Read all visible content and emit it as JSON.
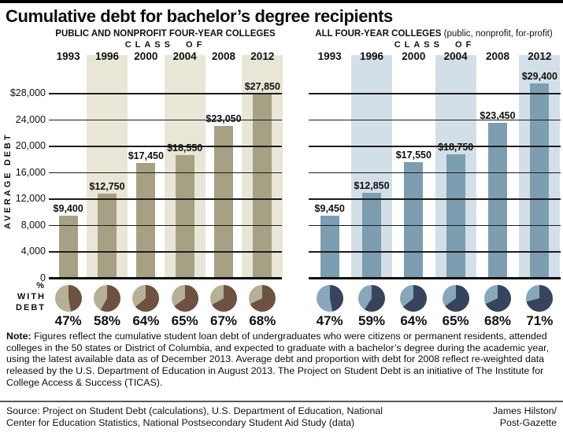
{
  "title": "Cumulative debt for bachelor’s degree recipients",
  "axis": {
    "class_of": "CLASS OF",
    "y_axis_title": "AVERAGE DEBT",
    "y_ticks": [
      "$28,000",
      "24,000",
      "20,000",
      "16,000",
      "12,000",
      "8,000",
      "4,000",
      "0"
    ],
    "y_tick_values": [
      28000,
      24000,
      20000,
      16000,
      12000,
      8000,
      4000,
      0
    ],
    "pct_label_lines": [
      "%",
      "WITH",
      "DEBT"
    ]
  },
  "chart_data": [
    {
      "type": "bar",
      "title": "PUBLIC AND NONPROFIT FOUR-YEAR COLLEGES",
      "subtitle": "",
      "xlabel": "CLASS OF",
      "ylabel": "AVERAGE DEBT",
      "ylim": [
        0,
        28000
      ],
      "grid": true,
      "categories": [
        "1993",
        "1996",
        "2000",
        "2004",
        "2008",
        "2012"
      ],
      "values": [
        9400,
        12750,
        17450,
        18550,
        23050,
        27850
      ],
      "value_labels": [
        "$9,400",
        "$12,750",
        "$17,450",
        "$18,550",
        "$23,050",
        "$27,850"
      ],
      "pct_with_debt": [
        47,
        58,
        64,
        65,
        67,
        68
      ],
      "pct_labels": [
        "47%",
        "58%",
        "64%",
        "65%",
        "67%",
        "68%"
      ],
      "colors": {
        "bar": "#a7a183",
        "band": "#e9e6d8",
        "pie_dark": "#6e5140",
        "pie_light": "#b5b196"
      }
    },
    {
      "type": "bar",
      "title": "ALL FOUR-YEAR COLLEGES",
      "subtitle": "(public, nonprofit, for-profit)",
      "xlabel": "CLASS OF",
      "ylabel": "AVERAGE DEBT",
      "ylim": [
        0,
        28000
      ],
      "grid": true,
      "categories": [
        "1993",
        "1996",
        "2000",
        "2004",
        "2008",
        "2012"
      ],
      "values": [
        9450,
        12850,
        17550,
        18750,
        23450,
        29400
      ],
      "value_labels": [
        "$9,450",
        "$12,850",
        "$17,550",
        "$18,750",
        "$23,450",
        "$29,400"
      ],
      "pct_with_debt": [
        47,
        59,
        64,
        65,
        68,
        71
      ],
      "pct_labels": [
        "47%",
        "59%",
        "64%",
        "65%",
        "68%",
        "71%"
      ],
      "colors": {
        "bar": "#7c9eb0",
        "band": "#d3dfe8",
        "pie_dark": "#37445e",
        "pie_light": "#86a8ba"
      }
    }
  ],
  "note": {
    "label": "Note:",
    "text": " Figures reflect the cumulative student loan debt of undergraduates who were citizens or permanent residents, attended colleges in the 50 states or District of Columbia, and expected to graduate with a bachelor’s degree during the academic year, using the latest available data as of December 2013. Average debt and proportion with debt for 2008 reflect re-weighted data released by the U.S. Department of Education in August 2013. The Project on Student Debt is an initiative of The Institute for College Access & Success (TICAS)."
  },
  "source": {
    "text": "Source: Project on Student Debt (calculations), U.S. Department of Education, National Center for Education Statistics, National Postsecondary Student Aid Study (data)"
  },
  "credit": {
    "line1": "James Hilston/",
    "line2": "Post-Gazette"
  }
}
